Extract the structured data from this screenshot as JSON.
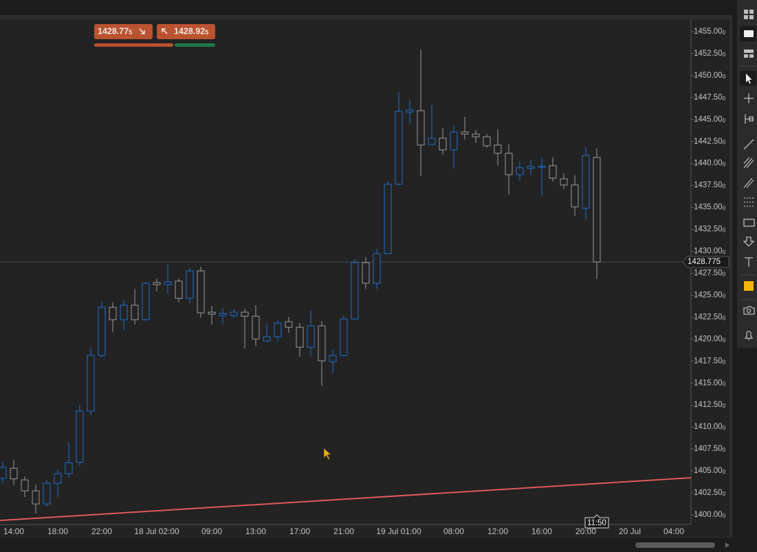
{
  "trade_panel": {
    "sell_price": "1428.775",
    "buy_price": "1428.925"
  },
  "chart_data": {
    "type": "candlestick",
    "categories": [
      null,
      "14:00",
      null,
      null,
      null,
      "18:00",
      null,
      null,
      null,
      "22:00",
      null,
      null,
      null,
      null,
      "18 Jul 02:00",
      null,
      null,
      null,
      null,
      "09:00",
      null,
      null,
      null,
      "13:00",
      null,
      null,
      null,
      "17:00",
      null,
      null,
      null,
      "21:00",
      null,
      null,
      null,
      null,
      "19 Jul 01:00",
      null,
      null,
      null,
      null,
      "08:00",
      null,
      null,
      null,
      "12:00",
      null,
      null,
      null,
      "16:00",
      null,
      null,
      null,
      "20:00",
      null,
      null,
      null,
      "20 Jul",
      null,
      null,
      null,
      "04:00",
      null
    ],
    "open": [
      1404.14,
      1405.3,
      1403.98,
      1402.73,
      1401.24,
      1403.59,
      1404.69,
      1405.98,
      1411.81,
      1418.14,
      1423.62,
      1422.21,
      1423.86,
      1422.21,
      1426.44,
      1426.2,
      1426.6,
      1424.64,
      1427.77,
      1423.07,
      1422.68,
      1422.68,
      1423.07,
      1422.6,
      1419.79,
      1420.26,
      1421.98,
      1421.35,
      1419.08,
      1421.51,
      1417.44,
      1418.14,
      1422.29,
      1428.71,
      1426.36,
      1429.73,
      1437.63,
      1445.84,
      1446.0,
      1442.17,
      1442.87,
      1441.54,
      1443.58,
      1443.34,
      1443.03,
      1442.09,
      1441.15,
      1438.72,
      1439.43,
      1439.59,
      1439.74,
      1438.25,
      1437.55,
      1434.89,
      1440.68,
      null,
      null,
      null,
      null,
      null,
      null,
      null,
      null
    ],
    "high": [
      1406.0,
      1406.25,
      1404.37,
      1403.43,
      1403.98,
      1405.15,
      1408.29,
      1412.51,
      1419.08,
      1424.33,
      1424.17,
      1424.48,
      1425.73,
      1426.52,
      1426.91,
      1428.55,
      1426.91,
      1428.16,
      1428.24,
      1423.78,
      1423.54,
      1423.39,
      1423.46,
      1423.86,
      1421.82,
      1422.13,
      1422.53,
      1421.82,
      1423.23,
      1422.06,
      1418.85,
      1422.68,
      1429.1,
      1429.33,
      1430.27,
      1437.94,
      1448.11,
      1447.25,
      1452.97,
      1446.63,
      1444.04,
      1444.36,
      1445.3,
      1443.81,
      1443.34,
      1443.89,
      1442.17,
      1440.21,
      1440.37,
      1440.6,
      1440.68,
      1438.88,
      1438.65,
      1441.85,
      1441.7,
      null,
      null,
      null,
      null,
      null,
      null,
      null,
      null
    ],
    "low": [
      1403.6,
      1403.4,
      1402.02,
      1400.15,
      1400.93,
      1402.02,
      1404.22,
      1405.62,
      1411.34,
      1417.91,
      1420.8,
      1421.04,
      1421.67,
      1422.13,
      1425.42,
      1425.11,
      1424.17,
      1424.09,
      1422.45,
      1421.67,
      1421.67,
      1422.37,
      1418.93,
      1419.24,
      1419.71,
      1419.71,
      1420.73,
      1417.99,
      1417.99,
      1414.7,
      1416.11,
      1418.07,
      1422.21,
      1425.73,
      1425.73,
      1429.65,
      1437.47,
      1444.51,
      1438.57,
      1442.09,
      1440.99,
      1439.43,
      1442.71,
      1442.32,
      1441.78,
      1439.74,
      1436.45,
      1438.02,
      1438.65,
      1436.38,
      1437.94,
      1437.08,
      1434.03,
      1433.56,
      1426.83,
      null,
      null,
      null,
      null,
      null,
      null,
      null,
      null
    ],
    "close": [
      1405.39,
      1404.1,
      1402.73,
      1401.24,
      1403.59,
      1404.69,
      1405.94,
      1411.81,
      1418.14,
      1423.62,
      1422.21,
      1423.86,
      1422.21,
      1426.36,
      1426.2,
      1426.52,
      1424.64,
      1427.77,
      1422.99,
      1422.84,
      1422.92,
      1423.07,
      1422.6,
      1420.02,
      1420.26,
      1421.82,
      1421.35,
      1419.08,
      1421.51,
      1417.52,
      1418.14,
      1422.29,
      1428.71,
      1426.36,
      1429.73,
      1437.63,
      1445.92,
      1446.08,
      1442.09,
      1442.87,
      1441.54,
      1443.58,
      1443.34,
      1443.03,
      1442.01,
      1441.15,
      1438.72,
      1439.51,
      1439.66,
      1439.66,
      1438.33,
      1437.55,
      1435.05,
      1440.91,
      1428.79,
      null,
      null,
      null,
      null,
      null,
      null,
      null,
      null
    ],
    "up_color": "#1e6fd0",
    "down_color": "#9a9a9a",
    "current_price": 1428.775,
    "countdown": "11:50",
    "trendline": {
      "color": "#e05a5a",
      "values": [
        1399.36,
        1404.22
      ]
    },
    "ylim": [
      1398.9,
      1456.25
    ],
    "yticks": [
      {
        "value": 1400,
        "label": "1400.000"
      },
      {
        "value": 1402.5,
        "label": "1402.500"
      },
      {
        "value": 1405,
        "label": "1405.000"
      },
      {
        "value": 1407.5,
        "label": "1407.500"
      },
      {
        "value": 1410,
        "label": "1410.000"
      },
      {
        "value": 1412.5,
        "label": "1412.500"
      },
      {
        "value": 1415,
        "label": "1415.000"
      },
      {
        "value": 1417.5,
        "label": "1417.500"
      },
      {
        "value": 1420,
        "label": "1420.000"
      },
      {
        "value": 1422.5,
        "label": "1422.500"
      },
      {
        "value": 1425,
        "label": "1425.000"
      },
      {
        "value": 1427.5,
        "label": "1427.500"
      },
      {
        "value": 1430,
        "label": "1430.000"
      },
      {
        "value": 1432.5,
        "label": "1432.500"
      },
      {
        "value": 1435,
        "label": "1435.000"
      },
      {
        "value": 1437.5,
        "label": "1437.500"
      },
      {
        "value": 1440,
        "label": "1440.000"
      },
      {
        "value": 1442.5,
        "label": "1442.500"
      },
      {
        "value": 1445,
        "label": "1445.000"
      },
      {
        "value": 1447.5,
        "label": "1447.500"
      },
      {
        "value": 1450,
        "label": "1450.000"
      },
      {
        "value": 1452.5,
        "label": "1452.500"
      },
      {
        "value": 1455,
        "label": "1455.000"
      }
    ],
    "grid": false
  }
}
